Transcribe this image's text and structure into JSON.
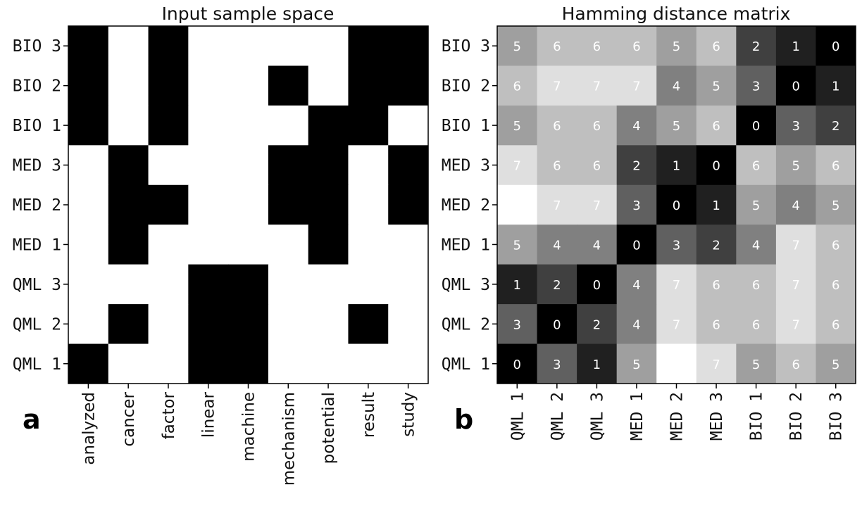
{
  "panel_labels": [
    "a",
    "b"
  ],
  "chart_data": [
    {
      "type": "heatmap",
      "title": "Input sample space",
      "x_tick_labels": [
        "analyzed",
        "cancer",
        "factor",
        "linear",
        "machine",
        "mechanism",
        "potential",
        "result",
        "study"
      ],
      "y_tick_labels": [
        "BIO 3",
        "BIO 2",
        "BIO 1",
        "MED 3",
        "MED 2",
        "MED 1",
        "QML 3",
        "QML 2",
        "QML 1"
      ],
      "colors": {
        "1": "#000000",
        "0": "#ffffff"
      },
      "matrix": [
        [
          1,
          0,
          1,
          0,
          0,
          0,
          0,
          1,
          1
        ],
        [
          1,
          0,
          1,
          0,
          0,
          1,
          0,
          1,
          1
        ],
        [
          1,
          0,
          1,
          0,
          0,
          0,
          1,
          1,
          0
        ],
        [
          0,
          1,
          0,
          0,
          0,
          1,
          1,
          0,
          1
        ],
        [
          0,
          1,
          1,
          0,
          0,
          1,
          1,
          0,
          1
        ],
        [
          0,
          1,
          0,
          0,
          0,
          0,
          1,
          0,
          0
        ],
        [
          0,
          0,
          0,
          1,
          1,
          0,
          0,
          0,
          0
        ],
        [
          0,
          1,
          0,
          1,
          1,
          0,
          0,
          1,
          0
        ],
        [
          1,
          0,
          0,
          1,
          1,
          0,
          0,
          0,
          0
        ]
      ]
    },
    {
      "type": "heatmap",
      "title": "Hamming distance matrix",
      "x_tick_labels": [
        "QML 1",
        "QML 2",
        "QML 3",
        "MED 1",
        "MED 2",
        "MED 3",
        "BIO 1",
        "BIO 2",
        "BIO 3"
      ],
      "y_tick_labels": [
        "BIO 3",
        "BIO 2",
        "BIO 1",
        "MED 3",
        "MED 2",
        "MED 1",
        "QML 3",
        "QML 2",
        "QML 1"
      ],
      "colormap": "gray",
      "value_range": [
        0,
        8
      ],
      "matrix": [
        [
          5,
          6,
          6,
          6,
          5,
          6,
          2,
          1,
          0
        ],
        [
          6,
          7,
          7,
          7,
          4,
          5,
          3,
          0,
          1
        ],
        [
          5,
          6,
          6,
          4,
          5,
          6,
          0,
          3,
          2
        ],
        [
          7,
          6,
          6,
          2,
          1,
          0,
          6,
          5,
          6
        ],
        [
          8,
          7,
          7,
          3,
          0,
          1,
          5,
          4,
          5
        ],
        [
          5,
          4,
          4,
          0,
          3,
          2,
          4,
          7,
          6
        ],
        [
          1,
          2,
          0,
          4,
          7,
          6,
          6,
          7,
          6
        ],
        [
          3,
          0,
          2,
          4,
          7,
          6,
          6,
          7,
          6
        ],
        [
          0,
          3,
          1,
          5,
          8,
          7,
          5,
          6,
          5
        ]
      ],
      "hidden_values": [
        8
      ]
    }
  ]
}
